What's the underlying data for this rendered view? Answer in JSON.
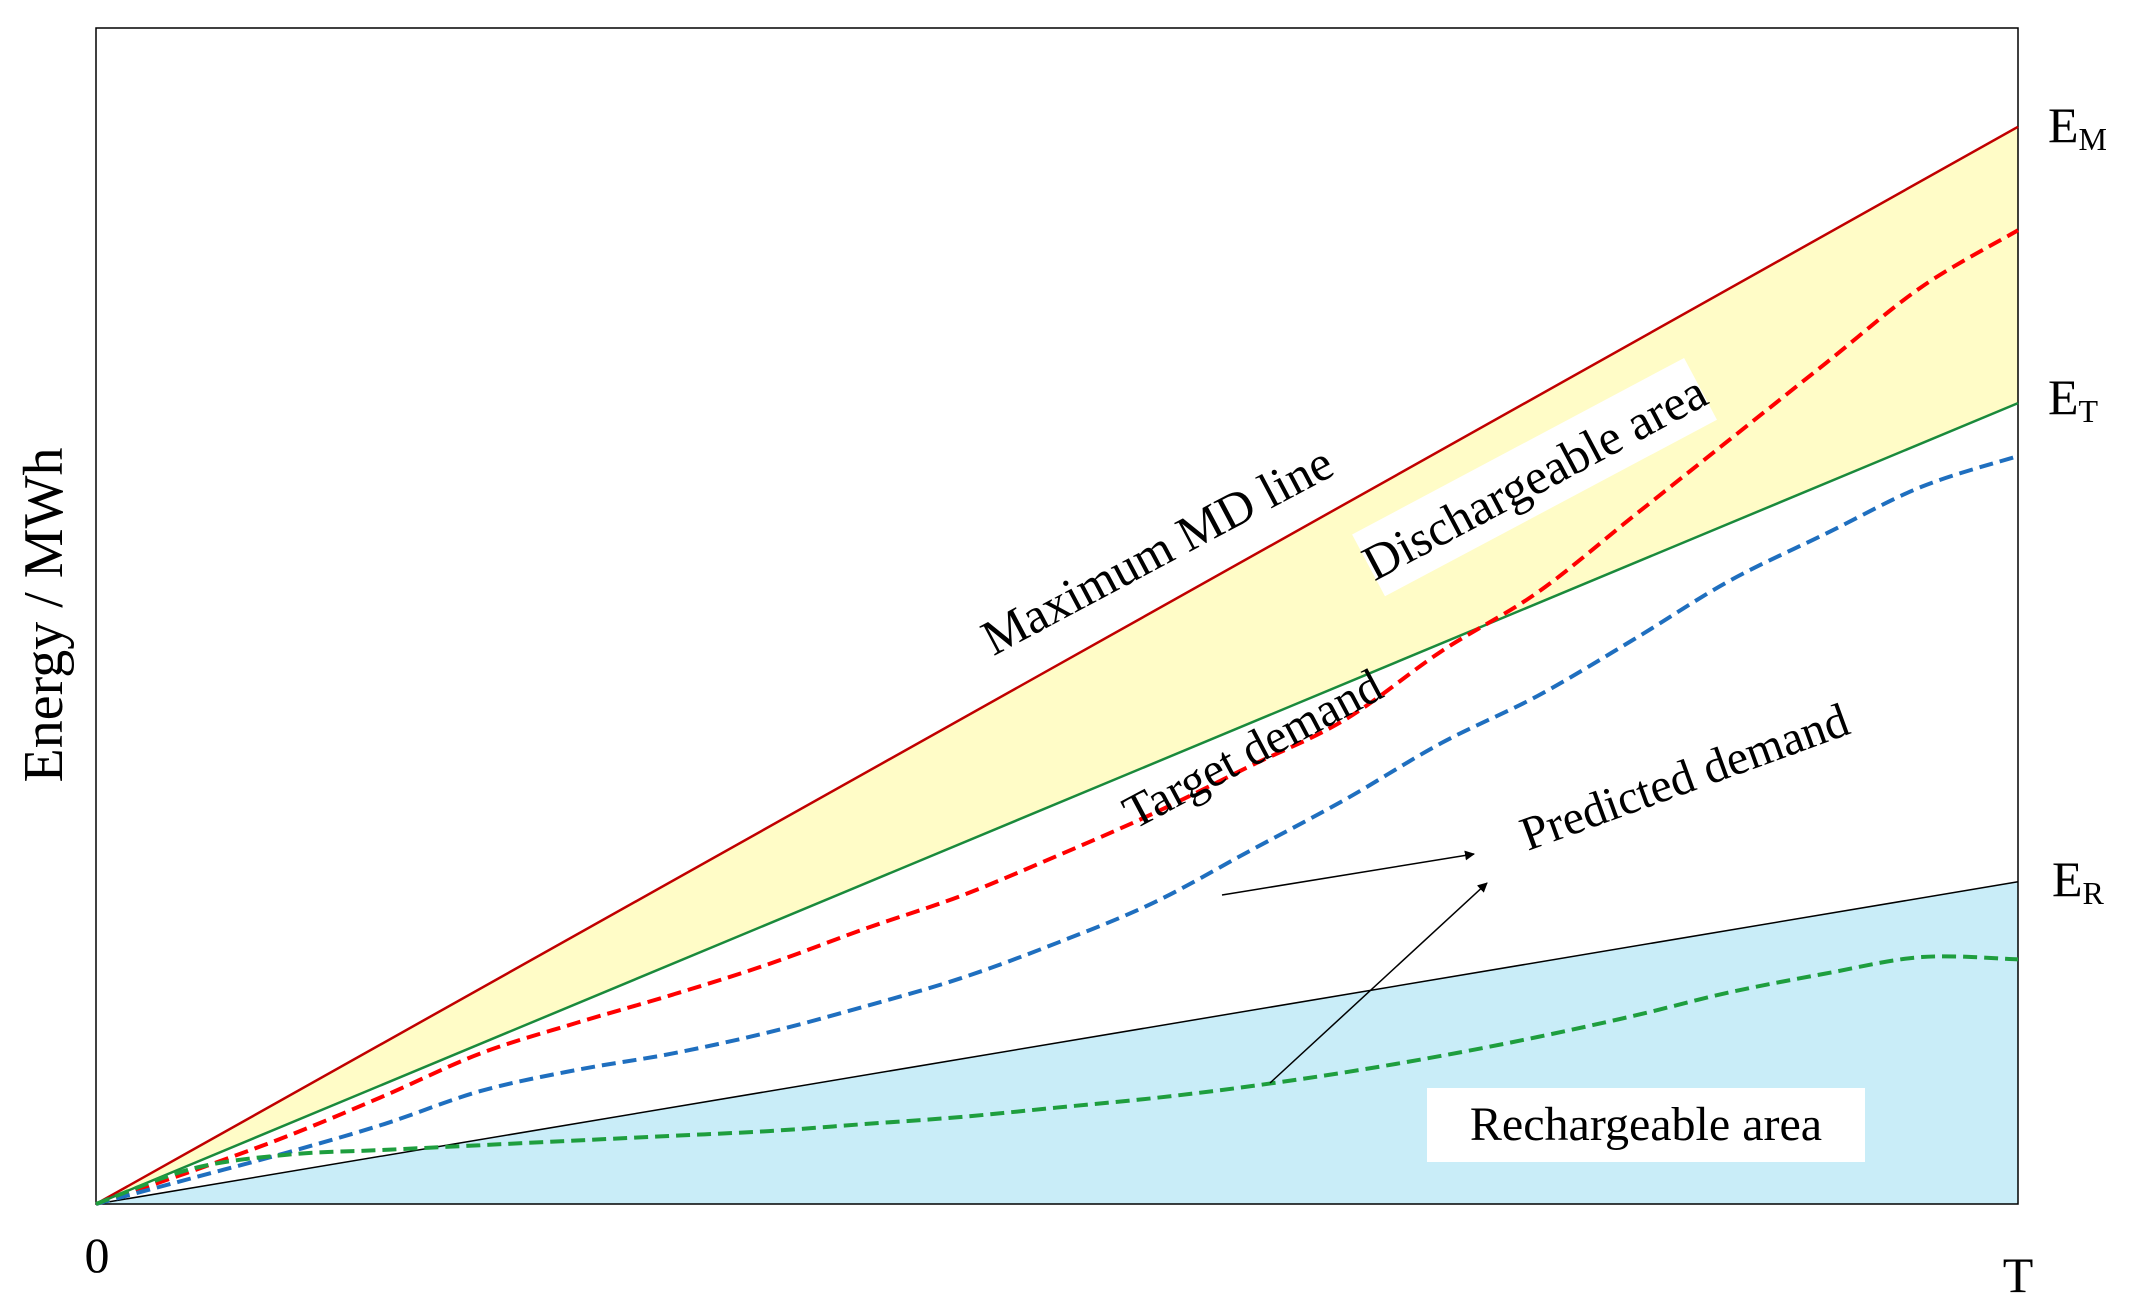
{
  "chart_data": {
    "type": "line",
    "ylabel": "Energy / MWh",
    "xlabel": "",
    "x_ticks": [
      "0",
      "T"
    ],
    "grid": false,
    "boundary_lines": [
      {
        "name": "Maximum MD line",
        "end_label": {
          "base": "E",
          "sub": "M"
        },
        "color": "#c00000",
        "x": [
          0,
          1
        ],
        "y": [
          0,
          0.916
        ]
      },
      {
        "name": "Target demand",
        "end_label": {
          "base": "E",
          "sub": "T"
        },
        "color": "#1a8a3c",
        "x": [
          0,
          1
        ],
        "y": [
          0,
          0.681
        ]
      },
      {
        "name": "",
        "end_label": {
          "base": "E",
          "sub": "R"
        },
        "color": "#000000",
        "x": [
          0,
          1
        ],
        "y": [
          0,
          0.274
        ]
      }
    ],
    "series": [
      {
        "color": "#ff0000",
        "style": "dashed",
        "x": [
          0,
          0.05,
          0.1,
          0.15,
          0.2,
          0.25,
          0.3,
          0.35,
          0.4,
          0.45,
          0.5,
          0.55,
          0.6,
          0.65,
          0.7,
          0.75,
          0.8,
          0.85,
          0.9,
          0.95,
          1.0
        ],
        "y": [
          0,
          0.028,
          0.058,
          0.092,
          0.128,
          0.154,
          0.178,
          0.204,
          0.234,
          0.262,
          0.296,
          0.332,
          0.372,
          0.412,
          0.47,
          0.52,
          0.585,
          0.65,
          0.715,
          0.78,
          0.828
        ]
      },
      {
        "color": "#1f6fbf",
        "style": "dashed",
        "x": [
          0,
          0.05,
          0.1,
          0.15,
          0.2,
          0.25,
          0.3,
          0.35,
          0.4,
          0.45,
          0.5,
          0.55,
          0.6,
          0.65,
          0.7,
          0.75,
          0.8,
          0.85,
          0.9,
          0.95,
          1.0
        ],
        "y": [
          0,
          0.022,
          0.044,
          0.068,
          0.096,
          0.114,
          0.128,
          0.146,
          0.168,
          0.192,
          0.222,
          0.256,
          0.3,
          0.344,
          0.392,
          0.432,
          0.48,
          0.53,
          0.57,
          0.61,
          0.636
        ]
      },
      {
        "color": "#1e9e3e",
        "style": "dashed",
        "x": [
          0,
          0.05,
          0.1,
          0.15,
          0.2,
          0.25,
          0.3,
          0.35,
          0.4,
          0.45,
          0.5,
          0.55,
          0.6,
          0.65,
          0.7,
          0.75,
          0.8,
          0.85,
          0.9,
          0.95,
          1.0
        ],
        "y": [
          0,
          0.03,
          0.042,
          0.046,
          0.05,
          0.054,
          0.058,
          0.062,
          0.068,
          0.074,
          0.082,
          0.09,
          0.1,
          0.112,
          0.126,
          0.142,
          0.16,
          0.18,
          0.196,
          0.21,
          0.208
        ]
      }
    ],
    "regions": [
      {
        "name": "Dischargeable area",
        "between": [
          "Maximum MD line",
          "Target demand"
        ],
        "color": "#fffcc7"
      },
      {
        "name": "Rechargeable area",
        "below": "E_R",
        "color": "#c9edf8"
      }
    ],
    "annotations": [
      {
        "text": "Maximum MD line"
      },
      {
        "text": "Target demand"
      },
      {
        "text": "Predicted demand"
      },
      {
        "text": "Dischargeable area"
      },
      {
        "text": "Rechargeable area"
      }
    ]
  }
}
